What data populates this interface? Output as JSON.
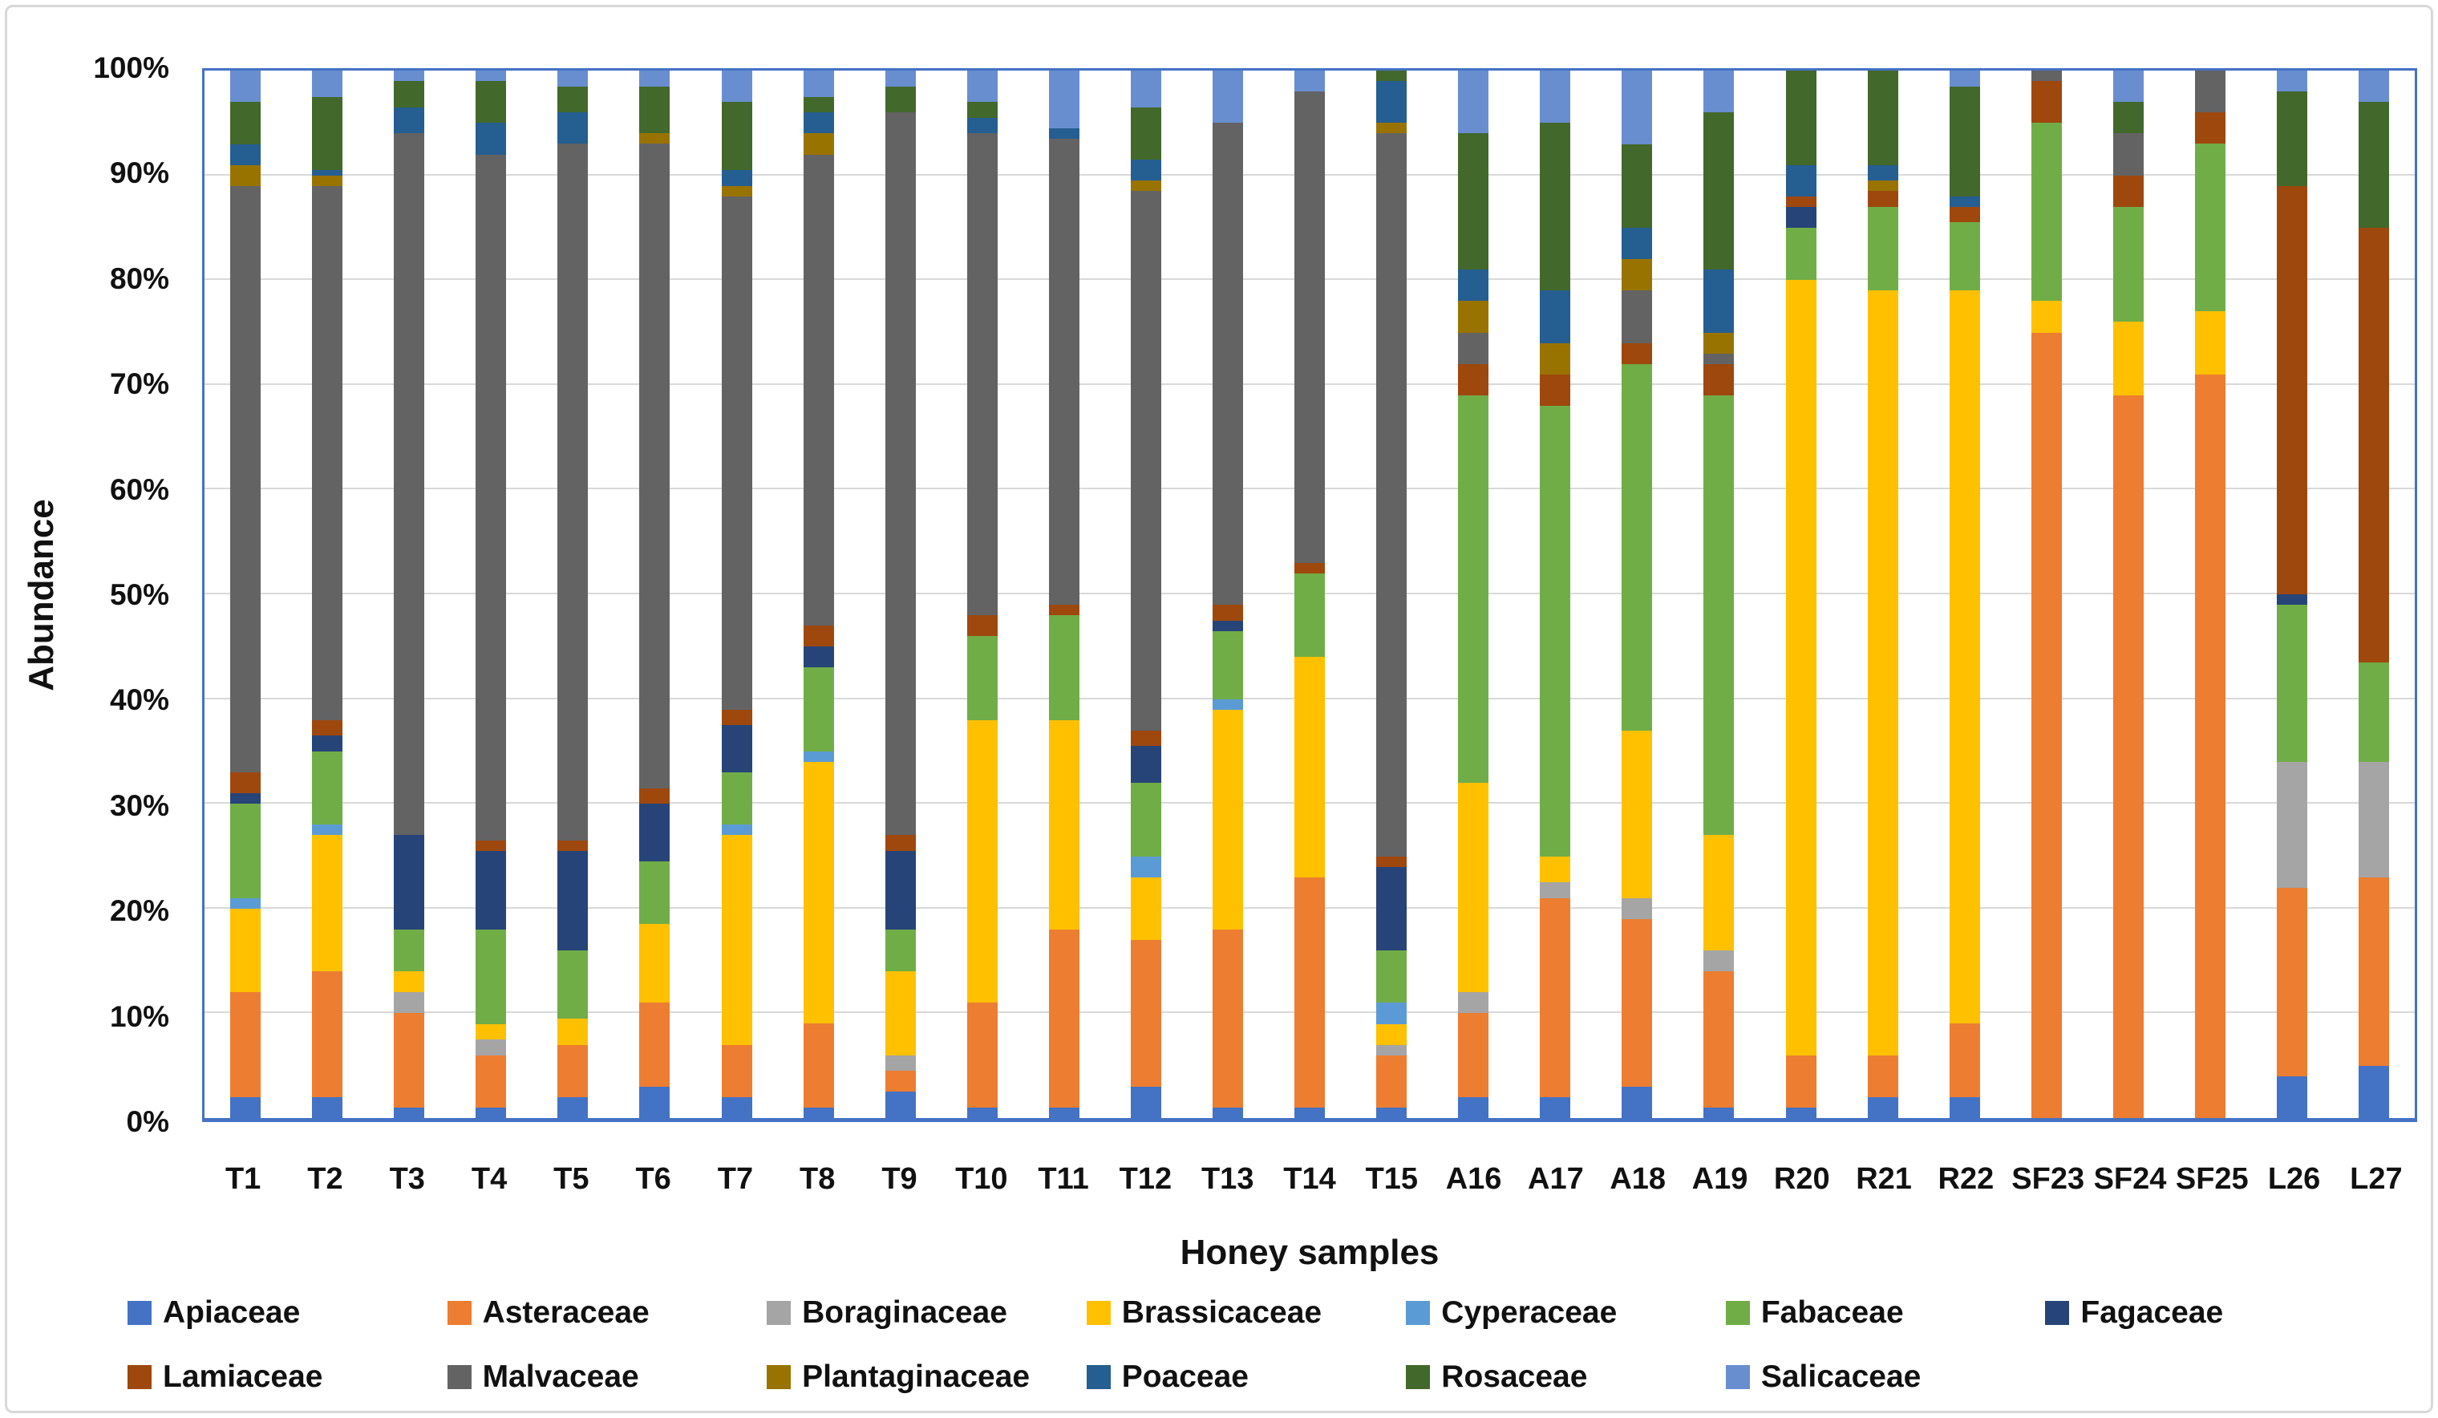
{
  "y_axis": {
    "title": "Abundance",
    "ticks": [
      "100%",
      "90%",
      "80%",
      "70%",
      "60%",
      "50%",
      "40%",
      "30%",
      "20%",
      "10%",
      "0%"
    ],
    "min": 0,
    "max": 100,
    "tick_step": 10
  },
  "x_axis": {
    "title": "Honey samples"
  },
  "style": {
    "plot_border_color": "#4472C4",
    "gridline_color": "#D9D9D9",
    "figure_border_color": "#D8D8D8",
    "text_color": "#111111"
  },
  "legend": {
    "rows": [
      [
        "Apiaceae",
        "Asteraceae",
        "Boraginaceae",
        "Brassicaceae",
        "Cyperaceae",
        "Fabaceae",
        "Fagaceae"
      ],
      [
        "Lamiaceae",
        "Malvaceae",
        "Plantaginaceae",
        "Poaceae",
        "Rosaceae",
        "Salicaceae"
      ]
    ]
  },
  "chart_data": {
    "type": "bar",
    "stacked": true,
    "percent_stacked": true,
    "title": "",
    "xlabel": "Honey samples",
    "ylabel": "Abundance",
    "ylim": [
      0,
      100
    ],
    "grid": true,
    "legend_position": "bottom",
    "categories": [
      "T1",
      "T2",
      "T3",
      "T4",
      "T5",
      "T6",
      "T7",
      "T8",
      "T9",
      "T10",
      "T11",
      "T12",
      "T13",
      "T14",
      "T15",
      "A16",
      "A17",
      "A18",
      "A19",
      "R20",
      "R21",
      "R22",
      "SF23",
      "SF24",
      "SF25",
      "L26",
      "L27"
    ],
    "series": [
      {
        "name": "Apiaceae",
        "color": "#4472C4",
        "values": [
          2,
          2,
          1,
          1,
          2,
          3,
          2,
          1,
          2.5,
          1,
          1,
          3,
          1,
          1,
          1,
          2,
          2,
          3,
          1,
          1,
          2,
          2,
          0,
          0,
          0,
          4,
          5
        ]
      },
      {
        "name": "Asteraceae",
        "color": "#ED7D31",
        "values": [
          10,
          12,
          9,
          5,
          5,
          8,
          5,
          8,
          2,
          10,
          17,
          14,
          17,
          22,
          5,
          8,
          19,
          16,
          13,
          5,
          4,
          7,
          75,
          69,
          71,
          18,
          18
        ]
      },
      {
        "name": "Boraginaceae",
        "color": "#A5A5A5",
        "values": [
          0,
          0,
          2,
          1.5,
          0,
          0,
          0,
          0,
          1.5,
          0,
          0,
          0,
          0,
          0,
          1,
          2,
          1.5,
          2,
          2,
          0,
          0,
          0,
          0,
          0,
          0,
          12,
          11
        ]
      },
      {
        "name": "Brassicaceae",
        "color": "#FFC000",
        "values": [
          8,
          13,
          2,
          1.5,
          2.5,
          7.5,
          20,
          25,
          8,
          27,
          20,
          6,
          21,
          21,
          2,
          20,
          2.5,
          16,
          11,
          74,
          73,
          70,
          3,
          7,
          6,
          0,
          0
        ]
      },
      {
        "name": "Cyperaceae",
        "color": "#5B9BD5",
        "values": [
          1,
          1,
          0,
          0,
          0,
          0,
          1,
          1,
          0,
          0,
          0,
          2,
          1,
          0,
          2,
          0,
          0,
          0,
          0,
          0,
          0,
          0,
          0,
          0,
          0,
          0,
          0
        ]
      },
      {
        "name": "Fabaceae",
        "color": "#70AD47",
        "values": [
          9,
          7,
          4,
          9,
          6.5,
          6,
          5,
          8,
          4,
          8,
          10,
          7,
          6.5,
          8,
          5,
          37,
          43,
          35,
          42,
          5,
          8,
          6.5,
          17,
          11,
          16,
          15,
          9.5
        ]
      },
      {
        "name": "Fagaceae",
        "color": "#264478",
        "values": [
          1,
          1.5,
          9,
          7.5,
          9.5,
          5.5,
          4.5,
          2,
          7.5,
          0,
          0,
          3.5,
          1,
          0,
          8,
          0,
          0,
          0,
          0,
          2,
          0,
          0,
          0,
          0,
          0,
          1,
          0
        ]
      },
      {
        "name": "Lamiaceae",
        "color": "#9E480E",
        "values": [
          2,
          1.5,
          0,
          1,
          1,
          1.5,
          1.5,
          2,
          1.5,
          2,
          1,
          1.5,
          1.5,
          1,
          1,
          3,
          3,
          2,
          3,
          1,
          1.5,
          1.5,
          4,
          3,
          3,
          39,
          41.5
        ]
      },
      {
        "name": "Malvaceae",
        "color": "#636363",
        "values": [
          56,
          51,
          67,
          65.5,
          66.5,
          61.5,
          49,
          45,
          69,
          46,
          44.5,
          51.5,
          46,
          45,
          69,
          3,
          0,
          5,
          1,
          0,
          0,
          0,
          1,
          4,
          4,
          0,
          0
        ]
      },
      {
        "name": "Plantaginaceae",
        "color": "#997300",
        "values": [
          2,
          1,
          0,
          0,
          0,
          1,
          1,
          2,
          0,
          0,
          0,
          1,
          0,
          0,
          1,
          3,
          3,
          3,
          2,
          0,
          1,
          0,
          0,
          0,
          0,
          0,
          0
        ]
      },
      {
        "name": "Poaceae",
        "color": "#255E91",
        "values": [
          2,
          0.5,
          2.5,
          3,
          3,
          0,
          1.5,
          2,
          0,
          1.5,
          1,
          2,
          0,
          0,
          4,
          3,
          5,
          3,
          6,
          3,
          1.5,
          1,
          0,
          0,
          0,
          0,
          0
        ]
      },
      {
        "name": "Rosaceae",
        "color": "#43682B",
        "values": [
          4,
          7,
          2.5,
          4,
          2.5,
          4.5,
          6.5,
          1.5,
          2.5,
          1.5,
          0,
          5,
          0,
          0,
          1,
          13,
          16,
          8,
          15,
          9,
          9,
          10.5,
          0,
          3,
          0,
          9,
          12
        ]
      },
      {
        "name": "Salicaceae",
        "color": "#698ED0",
        "values": [
          3,
          2.5,
          1,
          1,
          1.5,
          1.5,
          3,
          2.5,
          1.5,
          3,
          5.5,
          3.5,
          5,
          2,
          0,
          6,
          5,
          7,
          4,
          0,
          0,
          1.5,
          0,
          3,
          0,
          2,
          3
        ]
      }
    ]
  }
}
